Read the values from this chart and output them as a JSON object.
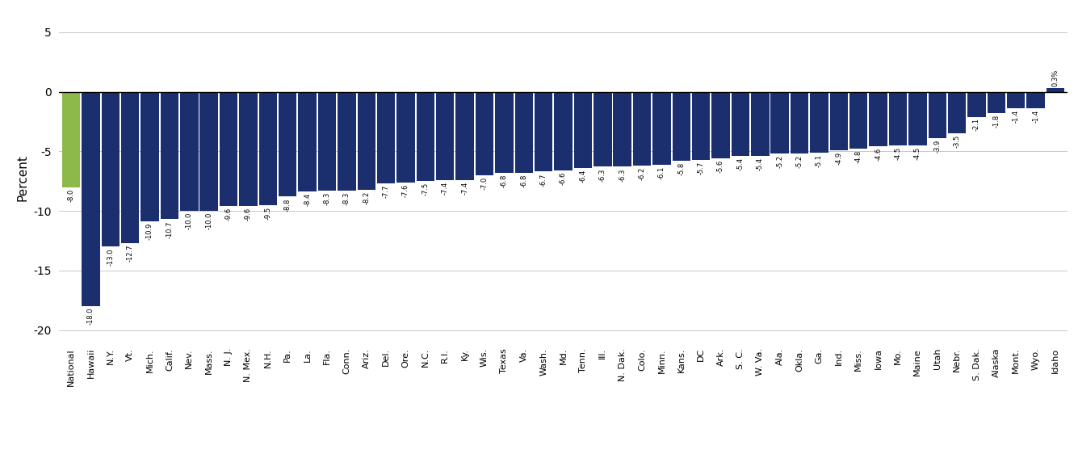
{
  "categories": [
    "National",
    "Hawaii",
    "N.Y.",
    "Vt.",
    "Mich.",
    "Calif.",
    "Nev.",
    "Mass.",
    "N. J.",
    "N. Mex.",
    "N.H.",
    "Pa.",
    "La.",
    "Fla.",
    "Conn.",
    "Ariz.",
    "Del.",
    "Ore.",
    "N.C.",
    "R.I.",
    "Ky.",
    "Wis.",
    "Texas",
    "Va.",
    "Wash.",
    "Md.",
    "Tenn.",
    "Ill.",
    "N. Dak.",
    "Colo.",
    "Minn.",
    "Kans.",
    "DC",
    "Ark.",
    "S. C.",
    "W. Va.",
    "Ala.",
    "Okla.",
    "Ga.",
    "Ind.",
    "Miss.",
    "Iowa",
    "Mo.",
    "Maine",
    "Utah",
    "Nebr.",
    "S. Dak.",
    "Alaska",
    "Mont.",
    "Wyo.",
    "Idaho"
  ],
  "values": [
    -8.0,
    -18.0,
    -13.0,
    -12.7,
    -10.9,
    -10.7,
    -10.0,
    -10.0,
    -9.6,
    -9.6,
    -9.5,
    -8.8,
    -8.4,
    -8.3,
    -8.3,
    -8.2,
    -7.7,
    -7.6,
    -7.5,
    -7.4,
    -7.4,
    -7.0,
    -6.8,
    -6.8,
    -6.7,
    -6.6,
    -6.4,
    -6.3,
    -6.3,
    -6.2,
    -6.1,
    -5.8,
    -5.7,
    -5.6,
    -5.4,
    -5.4,
    -5.2,
    -5.2,
    -5.1,
    -4.9,
    -4.8,
    -4.6,
    -4.5,
    -4.5,
    -3.9,
    -3.5,
    -2.1,
    -1.8,
    -1.4,
    -1.4,
    0.3
  ],
  "value_labels": [
    "-8.0",
    "-18.0",
    "-13.0",
    "-12.7",
    "-10.9",
    "-10.7",
    "-10.0",
    "-10.0",
    "-9.6",
    "-9.6",
    "-9.5",
    "-8.8",
    "-8.4",
    "-8.3",
    "-8.3",
    "-8.2",
    "-7.7",
    "-7.6",
    "-7.5",
    "-7.4",
    "-7.4",
    "-7.0",
    "-6.8",
    "-6.8",
    "-6.7",
    "-6.6",
    "-6.4",
    "-6.3",
    "-6.3",
    "-6.2",
    "-6.1",
    "-5.8",
    "-5.7",
    "-5.6",
    "-5.4",
    "-5.4",
    "-5.2",
    "-5.2",
    "-5.1",
    "-4.9",
    "-4.8",
    "-4.6",
    "-4.5",
    "-4.5",
    "-3.9",
    "-3.5",
    "-2.1",
    "-1.8",
    "-1.4",
    "-1.4",
    "0.3%"
  ],
  "national_color": "#8db84a",
  "main_color": "#1b2f6e",
  "ylabel": "Percent",
  "ylim": [
    -21,
    6.5
  ],
  "yticks": [
    -20,
    -15,
    -10,
    -5,
    0,
    5
  ],
  "value_label_fontsize": 6.0,
  "axis_label_fontsize": 11,
  "xtick_fontsize": 8.0,
  "ytick_fontsize": 10,
  "bg_color": "#ffffff",
  "grid_color": "#c8c8c8",
  "bar_width": 0.92
}
